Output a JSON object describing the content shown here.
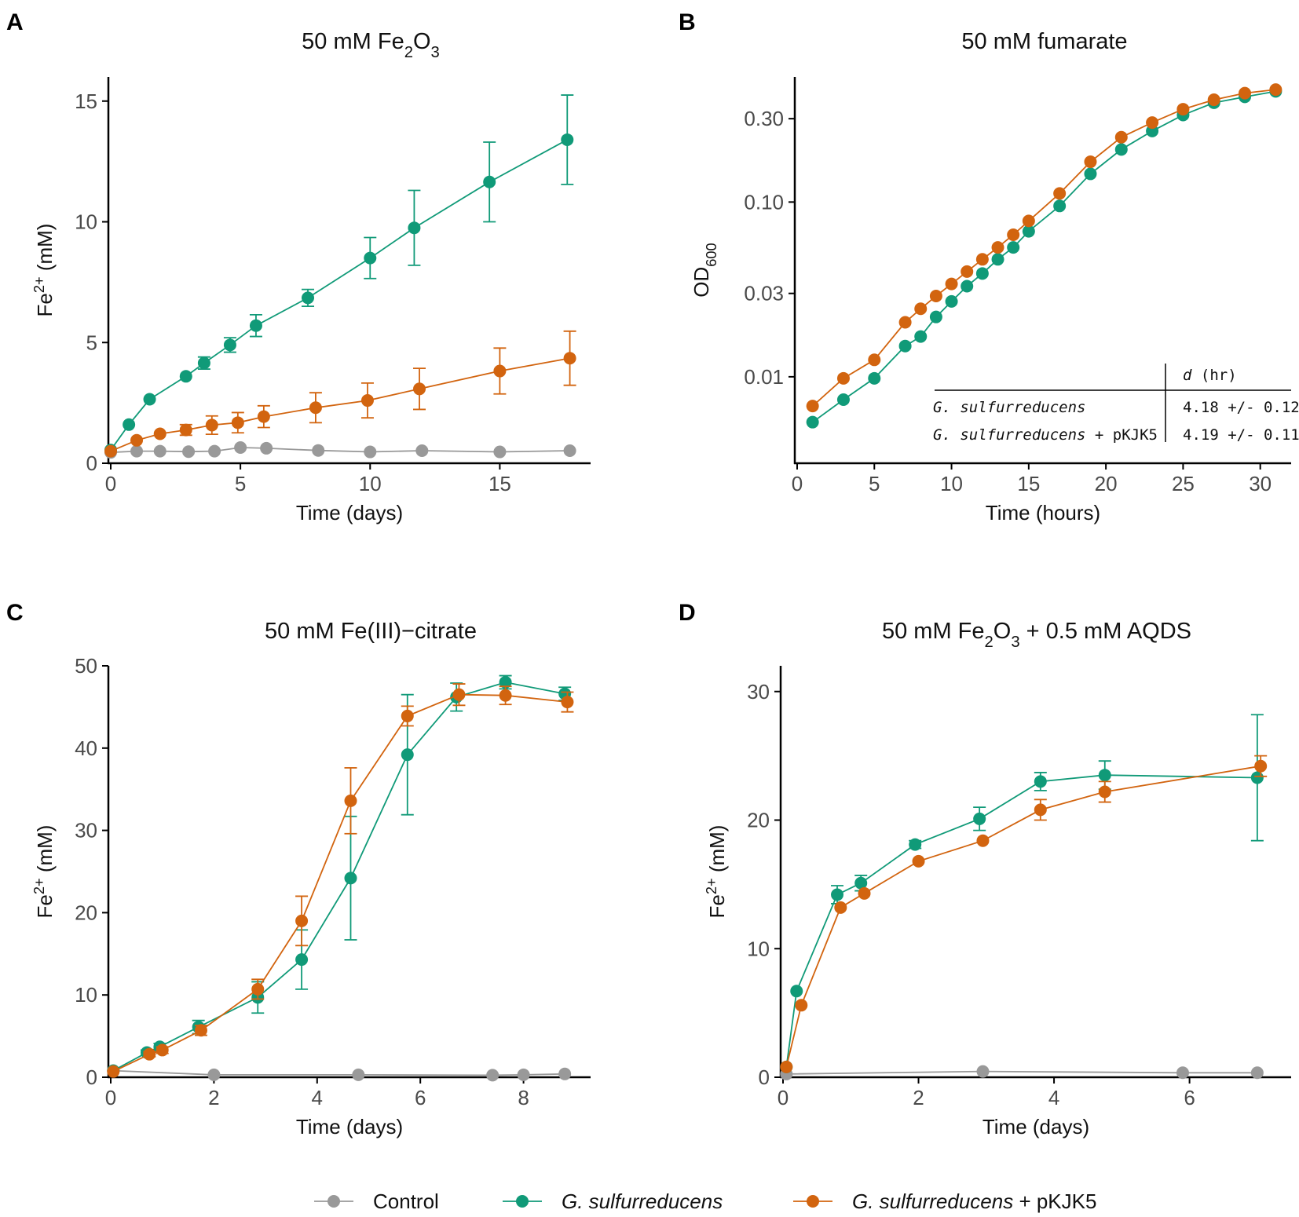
{
  "colors": {
    "control": "#999999",
    "gsulf": "#109a78",
    "pkjk5": "#d2640f",
    "axis": "#000000",
    "tick_text": "#4a4a4a"
  },
  "legend": {
    "items": [
      {
        "key": "control",
        "label": "Control",
        "italic": "",
        "suffix": ""
      },
      {
        "key": "gsulf",
        "label": "",
        "italic": "G. sulfurreducens",
        "suffix": ""
      },
      {
        "key": "pkjk5",
        "label": "",
        "italic": "G. sulfurreducens",
        "suffix": " + pKJK5"
      }
    ]
  },
  "chart_data": [
    {
      "id": "A",
      "letter": "A",
      "type": "line",
      "title": "50 mM Fe",
      "title_parts": [
        {
          "t": "50 mM Fe"
        },
        {
          "t": "2",
          "sub": true
        },
        {
          "t": "O"
        },
        {
          "t": "3",
          "sub": true
        }
      ],
      "xlabel": "Time (days)",
      "ylabel": "Fe",
      "ylabel_sup": "2+",
      "ylabel_suffix": " (mM)",
      "xlim": [
        0,
        18.5
      ],
      "ylim": [
        0,
        16
      ],
      "xticks": [
        0,
        5,
        10,
        15
      ],
      "yticks": [
        0,
        5,
        10,
        15
      ],
      "yscale": "linear",
      "series": [
        {
          "key": "control",
          "name": "Control",
          "x": [
            0,
            1,
            1.9,
            3,
            4,
            5,
            6,
            8,
            10,
            12,
            15,
            17.7
          ],
          "y": [
            0.45,
            0.5,
            0.5,
            0.48,
            0.5,
            0.65,
            0.62,
            0.53,
            0.47,
            0.52,
            0.47,
            0.52
          ],
          "err": [
            0,
            0,
            0,
            0,
            0,
            0,
            0,
            0,
            0,
            0,
            0,
            0
          ]
        },
        {
          "key": "gsulf",
          "name": "G. sulfurreducens",
          "x": [
            0,
            0.7,
            1.5,
            2.9,
            3.6,
            4.6,
            5.6,
            7.6,
            10,
            11.7,
            14.6,
            17.6
          ],
          "y": [
            0.55,
            1.6,
            2.65,
            3.6,
            4.15,
            4.9,
            5.7,
            6.85,
            8.5,
            9.75,
            11.65,
            13.4
          ],
          "err": [
            0,
            0,
            0,
            0,
            0.25,
            0.3,
            0.45,
            0.35,
            0.85,
            1.55,
            1.65,
            1.85
          ]
        },
        {
          "key": "pkjk5",
          "name": "G. sulfurreducens + pKJK5",
          "x": [
            0,
            1,
            1.9,
            2.9,
            3.9,
            4.9,
            5.9,
            7.9,
            9.9,
            11.9,
            15,
            17.7
          ],
          "y": [
            0.5,
            0.95,
            1.22,
            1.38,
            1.58,
            1.68,
            1.93,
            2.3,
            2.6,
            3.08,
            3.82,
            4.35
          ],
          "err": [
            0,
            0,
            0,
            0.22,
            0.38,
            0.42,
            0.45,
            0.62,
            0.72,
            0.85,
            0.95,
            1.12
          ]
        }
      ]
    },
    {
      "id": "B",
      "letter": "B",
      "type": "line",
      "title": "50 mM fumarate",
      "title_parts": [
        {
          "t": "50 mM fumarate"
        }
      ],
      "xlabel": "Time (hours)",
      "ylabel": "OD",
      "ylabel_sub": "600",
      "ylabel_suffix": "",
      "xlim": [
        0,
        32
      ],
      "ylim": [
        0.0032,
        0.52
      ],
      "xticks": [
        0,
        5,
        10,
        15,
        20,
        25,
        30
      ],
      "yticks": [
        0.01,
        0.03,
        0.1,
        0.3
      ],
      "ytick_labels": [
        "0.01",
        "0.03",
        "0.10",
        "0.30"
      ],
      "yscale": "log",
      "series": [
        {
          "key": "gsulf",
          "name": "G. sulfurreducens",
          "x": [
            1,
            3,
            5,
            7,
            8,
            9,
            10,
            11,
            12,
            13,
            14,
            15,
            17,
            19,
            21,
            23,
            25,
            27,
            29,
            31
          ],
          "y": [
            0.0055,
            0.0074,
            0.0098,
            0.015,
            0.017,
            0.022,
            0.027,
            0.033,
            0.039,
            0.047,
            0.055,
            0.068,
            0.095,
            0.145,
            0.2,
            0.255,
            0.315,
            0.37,
            0.4,
            0.43
          ],
          "err": []
        },
        {
          "key": "pkjk5",
          "name": "G. sulfurreducens + pKJK5",
          "x": [
            1,
            3,
            5,
            7,
            8,
            9,
            10,
            11,
            12,
            13,
            14,
            15,
            17,
            19,
            21,
            23,
            25,
            27,
            29,
            31
          ],
          "y": [
            0.0068,
            0.0098,
            0.0125,
            0.0205,
            0.0245,
            0.029,
            0.034,
            0.04,
            0.047,
            0.055,
            0.065,
            0.078,
            0.112,
            0.17,
            0.235,
            0.285,
            0.34,
            0.385,
            0.42,
            0.44
          ],
          "err": []
        }
      ],
      "table": {
        "header": "d",
        "header_suffix": " (hr)",
        "rows": [
          {
            "name_italic": "G. sulfurreducens",
            "name_suffix": "",
            "value": "4.18 +/- 0.12"
          },
          {
            "name_italic": "G. sulfurreducens",
            "name_suffix": " + pKJK5",
            "value": "4.19 +/- 0.11"
          }
        ]
      }
    },
    {
      "id": "C",
      "letter": "C",
      "type": "line",
      "title": "50 mM Fe(III)−citrate",
      "title_parts": [
        {
          "t": "50 mM Fe(III)−citrate"
        }
      ],
      "xlabel": "Time (days)",
      "ylabel": "Fe",
      "ylabel_sup": "2+",
      "ylabel_suffix": " (mM)",
      "xlim": [
        0,
        9.3
      ],
      "ylim": [
        0,
        50
      ],
      "xticks": [
        0,
        2,
        4,
        6,
        8
      ],
      "yticks": [
        0,
        10,
        20,
        30,
        40,
        50
      ],
      "yscale": "linear",
      "series": [
        {
          "key": "control",
          "name": "Control",
          "x": [
            0.05,
            2,
            4.8,
            7.4,
            8,
            8.8
          ],
          "y": [
            0.8,
            0.3,
            0.3,
            0.25,
            0.3,
            0.4
          ],
          "err": [
            0,
            0,
            0,
            0,
            0,
            0
          ]
        },
        {
          "key": "gsulf",
          "name": "G. sulfurreducens",
          "x": [
            0.05,
            0.7,
            0.95,
            1.7,
            2.85,
            3.7,
            4.65,
            5.75,
            6.7,
            7.65,
            8.8
          ],
          "y": [
            0.8,
            3.0,
            3.7,
            6.1,
            9.7,
            14.3,
            24.2,
            39.2,
            46.2,
            48.0,
            46.6
          ],
          "err": [
            0,
            0.3,
            0.4,
            0.8,
            1.9,
            3.6,
            7.5,
            7.3,
            1.7,
            0.8,
            0.8
          ]
        },
        {
          "key": "pkjk5",
          "name": "G. sulfurreducens + pKJK5",
          "x": [
            0.05,
            0.75,
            1,
            1.75,
            2.85,
            3.7,
            4.65,
            5.75,
            6.75,
            7.65,
            8.85
          ],
          "y": [
            0.7,
            2.8,
            3.3,
            5.7,
            10.7,
            19.0,
            33.6,
            43.9,
            46.5,
            46.4,
            45.6
          ],
          "err": [
            0,
            0.3,
            0.4,
            0.6,
            1.2,
            3.0,
            4.0,
            1.2,
            1.3,
            1.1,
            1.2
          ]
        }
      ]
    },
    {
      "id": "D",
      "letter": "D",
      "type": "line",
      "title": "50 mM Fe",
      "title_parts": [
        {
          "t": "50 mM Fe"
        },
        {
          "t": "2",
          "sub": true
        },
        {
          "t": "O"
        },
        {
          "t": "3",
          "sub": true
        },
        {
          "t": " + 0.5 mM AQDS"
        }
      ],
      "xlabel": "Time (days)",
      "ylabel": "Fe",
      "ylabel_sup": "2+",
      "ylabel_suffix": " (mM)",
      "xlim": [
        0,
        7.5
      ],
      "ylim": [
        0,
        32
      ],
      "xticks": [
        0,
        2,
        4,
        6
      ],
      "yticks": [
        0,
        10,
        20,
        30
      ],
      "yscale": "linear",
      "series": [
        {
          "key": "control",
          "name": "Control",
          "x": [
            0.05,
            2.95,
            5.9,
            7.0
          ],
          "y": [
            0.25,
            0.45,
            0.35,
            0.35
          ],
          "err": [
            0,
            0,
            0,
            0
          ]
        },
        {
          "key": "gsulf",
          "name": "G. sulfurreducens",
          "x": [
            0.05,
            0.2,
            0.8,
            1.15,
            1.95,
            2.9,
            3.8,
            4.75,
            7.0
          ],
          "y": [
            0.8,
            6.7,
            14.2,
            15.1,
            18.1,
            20.1,
            23.0,
            23.5,
            23.3
          ],
          "err": [
            0,
            0,
            0.7,
            0.6,
            0.3,
            0.9,
            0.7,
            1.1,
            4.9
          ]
        },
        {
          "key": "pkjk5",
          "name": "G. sulfurreducens + pKJK5",
          "x": [
            0.05,
            0.27,
            0.85,
            1.2,
            2.0,
            2.95,
            3.8,
            4.75,
            7.05
          ],
          "y": [
            0.8,
            5.6,
            13.2,
            14.3,
            16.8,
            18.4,
            20.8,
            22.2,
            24.2
          ],
          "err": [
            0,
            0,
            0,
            0,
            0,
            0,
            0.8,
            0.8,
            0.8
          ]
        }
      ]
    }
  ]
}
